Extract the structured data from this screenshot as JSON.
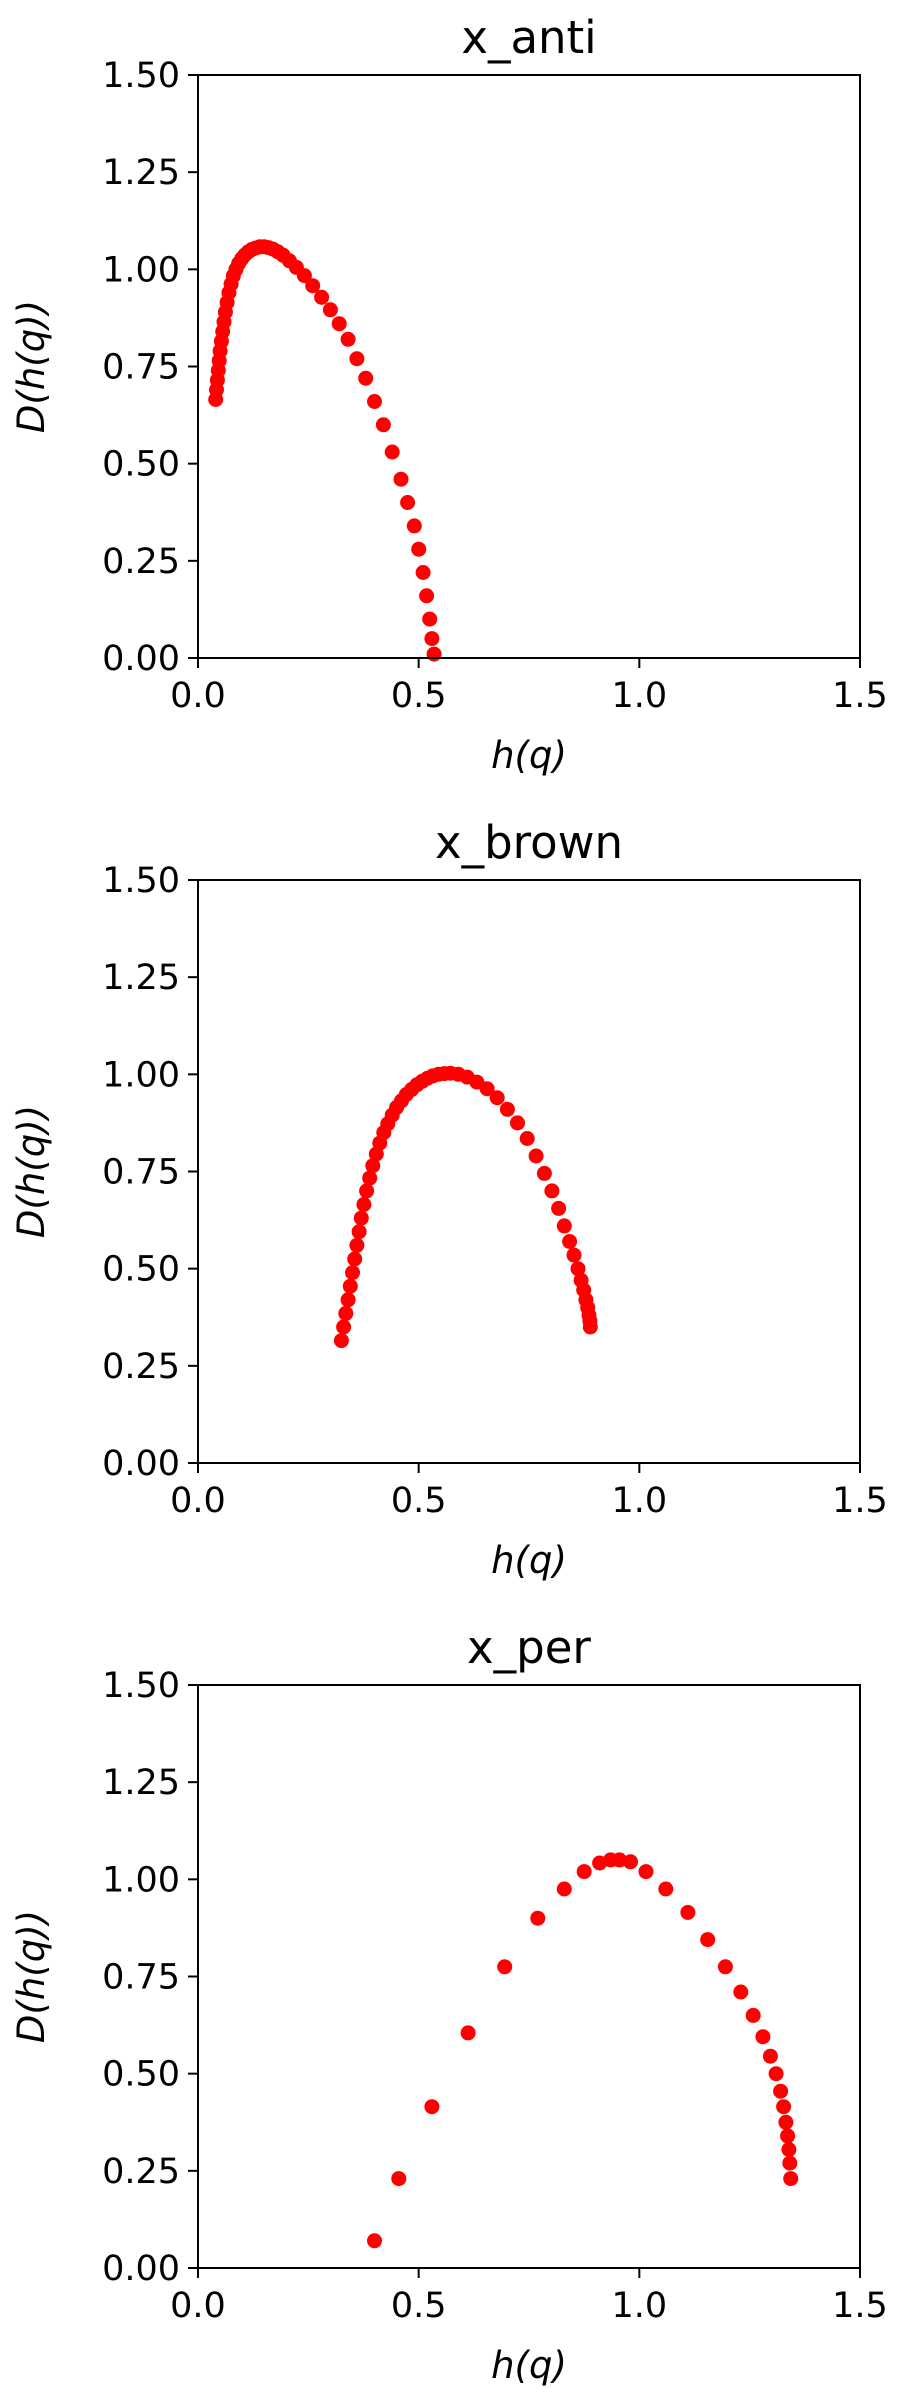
{
  "chart_data": [
    {
      "type": "scatter",
      "title": "x_anti",
      "xlabel": "h(q)",
      "ylabel": "D(h(q))",
      "xlim": [
        0.0,
        1.5
      ],
      "ylim": [
        0.0,
        1.5
      ],
      "xticks": [
        "0.0",
        "0.5",
        "1.0",
        "1.5"
      ],
      "yticks": [
        "0.00",
        "0.25",
        "0.50",
        "0.75",
        "1.00",
        "1.25",
        "1.50"
      ],
      "grid": false,
      "marker_color": "#ff0000",
      "series": [
        {
          "x": [
            0.04,
            0.042,
            0.044,
            0.046,
            0.048,
            0.05,
            0.053,
            0.056,
            0.059,
            0.062,
            0.066,
            0.07,
            0.075,
            0.08,
            0.086,
            0.092,
            0.099,
            0.106,
            0.114,
            0.122,
            0.131,
            0.14,
            0.15,
            0.16,
            0.17,
            0.181,
            0.193,
            0.207,
            0.223,
            0.241,
            0.26,
            0.28,
            0.3,
            0.32,
            0.34,
            0.36,
            0.38,
            0.4,
            0.42,
            0.44,
            0.46,
            0.475,
            0.49,
            0.5,
            0.51,
            0.518,
            0.525,
            0.53,
            0.535
          ],
          "y": [
            0.665,
            0.69,
            0.715,
            0.74,
            0.765,
            0.79,
            0.815,
            0.84,
            0.865,
            0.89,
            0.915,
            0.94,
            0.962,
            0.983,
            1.0,
            1.015,
            1.027,
            1.037,
            1.045,
            1.051,
            1.055,
            1.058,
            1.058,
            1.056,
            1.052,
            1.045,
            1.036,
            1.022,
            1.005,
            0.984,
            0.958,
            0.928,
            0.896,
            0.86,
            0.82,
            0.77,
            0.72,
            0.66,
            0.6,
            0.53,
            0.46,
            0.4,
            0.34,
            0.28,
            0.22,
            0.16,
            0.1,
            0.05,
            0.01
          ]
        }
      ]
    },
    {
      "type": "scatter",
      "title": "x_brown",
      "xlabel": "h(q)",
      "ylabel": "D(h(q))",
      "xlim": [
        0.0,
        1.5
      ],
      "ylim": [
        0.0,
        1.5
      ],
      "xticks": [
        "0.0",
        "0.5",
        "1.0",
        "1.5"
      ],
      "yticks": [
        "0.00",
        "0.25",
        "0.50",
        "0.75",
        "1.00",
        "1.25",
        "1.50"
      ],
      "grid": false,
      "marker_color": "#ff0000",
      "series": [
        {
          "x": [
            0.325,
            0.33,
            0.335,
            0.34,
            0.345,
            0.35,
            0.355,
            0.36,
            0.365,
            0.37,
            0.376,
            0.382,
            0.389,
            0.396,
            0.404,
            0.412,
            0.421,
            0.43,
            0.44,
            0.45,
            0.461,
            0.472,
            0.484,
            0.496,
            0.508,
            0.52,
            0.532,
            0.545,
            0.558,
            0.572,
            0.59,
            0.61,
            0.632,
            0.655,
            0.678,
            0.701,
            0.724,
            0.746,
            0.766,
            0.785,
            0.802,
            0.817,
            0.83,
            0.842,
            0.852,
            0.861,
            0.868,
            0.874,
            0.879,
            0.883,
            0.886,
            0.888,
            0.889
          ],
          "y": [
            0.315,
            0.35,
            0.385,
            0.42,
            0.455,
            0.49,
            0.525,
            0.56,
            0.595,
            0.63,
            0.665,
            0.7,
            0.733,
            0.765,
            0.795,
            0.823,
            0.85,
            0.873,
            0.895,
            0.915,
            0.932,
            0.948,
            0.961,
            0.973,
            0.982,
            0.99,
            0.996,
            1.0,
            1.002,
            1.003,
            1.0,
            0.993,
            0.98,
            0.963,
            0.94,
            0.91,
            0.875,
            0.835,
            0.79,
            0.745,
            0.7,
            0.655,
            0.61,
            0.57,
            0.535,
            0.5,
            0.47,
            0.445,
            0.42,
            0.4,
            0.38,
            0.365,
            0.35
          ]
        }
      ]
    },
    {
      "type": "scatter",
      "title": "x_per",
      "xlabel": "h(q)",
      "ylabel": "D(h(q))",
      "xlim": [
        0.0,
        1.5
      ],
      "ylim": [
        0.0,
        1.5
      ],
      "xticks": [
        "0.0",
        "0.5",
        "1.0",
        "1.5"
      ],
      "yticks": [
        "0.00",
        "0.25",
        "0.50",
        "0.75",
        "1.00",
        "1.25",
        "1.50"
      ],
      "grid": false,
      "marker_color": "#ff0000",
      "series": [
        {
          "x": [
            0.4,
            0.455,
            0.53,
            0.612,
            0.695,
            0.77,
            0.83,
            0.875,
            0.91,
            0.935,
            0.955,
            0.98,
            1.015,
            1.06,
            1.11,
            1.155,
            1.195,
            1.23,
            1.258,
            1.28,
            1.297,
            1.31,
            1.32,
            1.327,
            1.332,
            1.336,
            1.339,
            1.341,
            1.343
          ],
          "y": [
            0.07,
            0.23,
            0.415,
            0.605,
            0.775,
            0.9,
            0.975,
            1.02,
            1.042,
            1.05,
            1.05,
            1.045,
            1.02,
            0.975,
            0.915,
            0.845,
            0.775,
            0.71,
            0.65,
            0.595,
            0.545,
            0.5,
            0.455,
            0.415,
            0.375,
            0.34,
            0.305,
            0.27,
            0.23
          ]
        }
      ]
    }
  ]
}
